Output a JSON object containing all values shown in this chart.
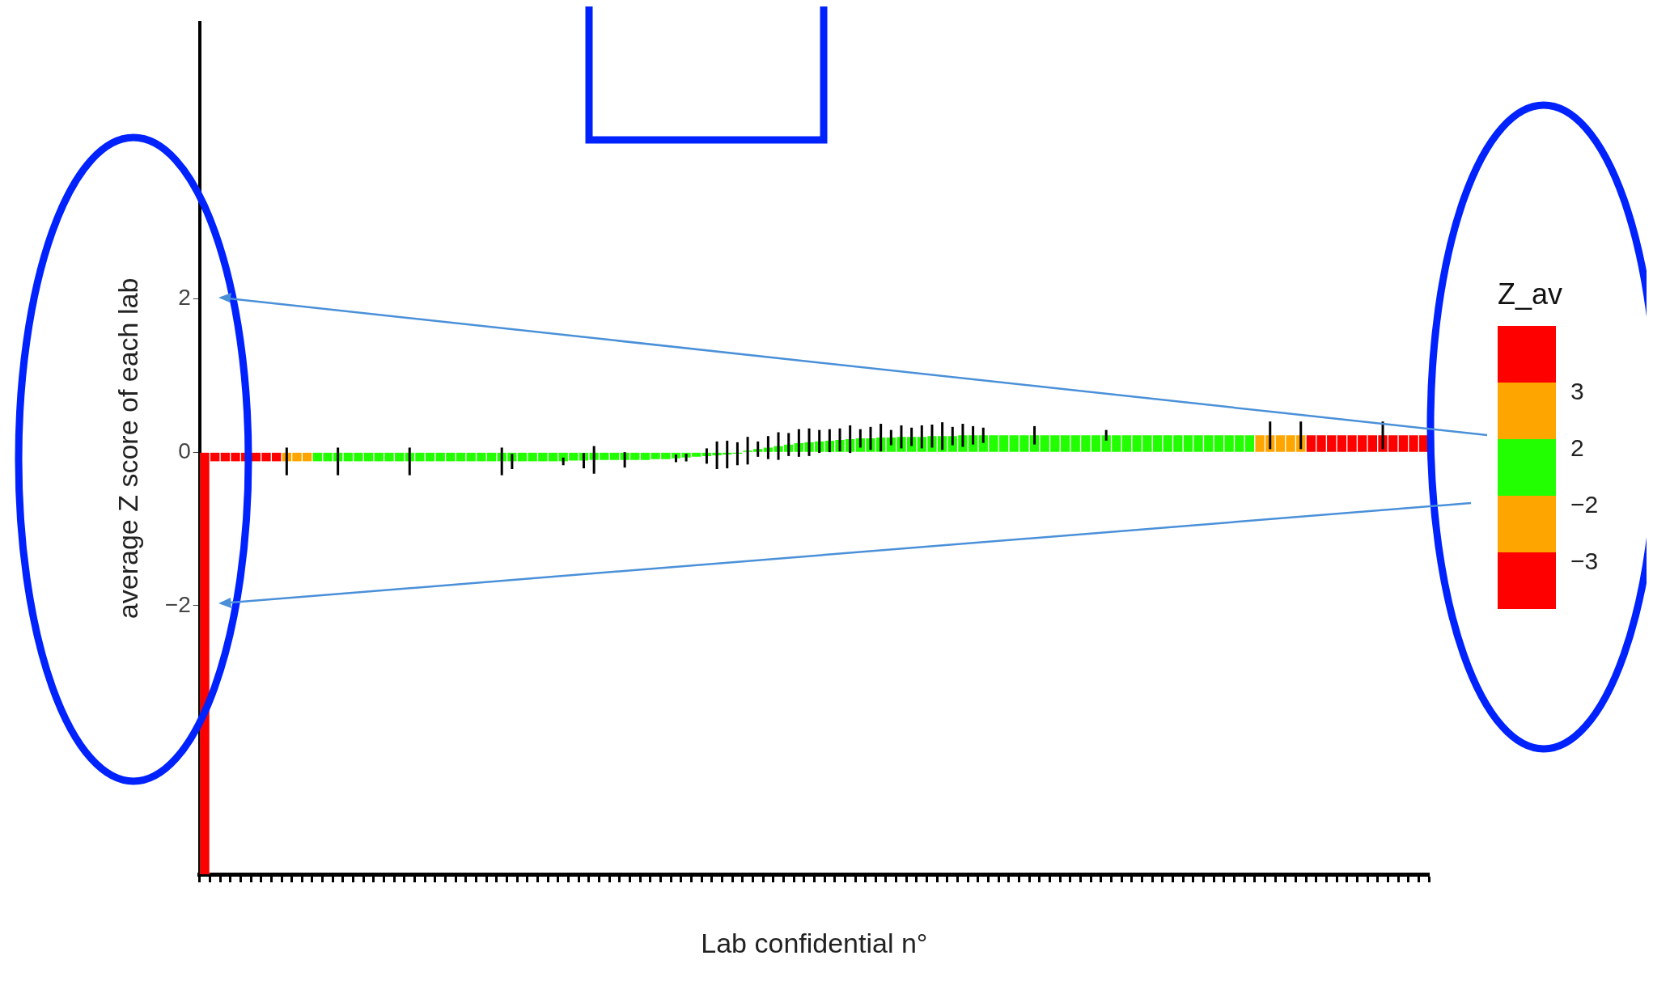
{
  "chart_data": {
    "type": "bar",
    "xlabel": "Lab confidential n°",
    "ylabel": "average Z score of each lab",
    "legend_title": "Z_av",
    "annotations": [
      "3",
      "2",
      "−2",
      "−3"
    ],
    "categories": [
      null,
      null,
      null,
      null,
      null,
      null,
      null,
      null,
      null,
      null,
      null,
      null,
      null,
      null,
      null,
      null,
      null,
      null,
      null,
      null,
      null,
      null,
      null,
      null,
      null,
      null,
      null,
      null,
      null,
      null,
      null,
      null,
      null,
      null,
      null,
      null,
      null,
      null,
      null,
      null,
      null,
      null,
      null,
      null,
      null,
      null,
      null,
      null,
      null,
      null,
      null,
      null,
      null,
      null,
      null,
      null,
      null,
      null,
      null,
      null,
      null,
      null,
      null,
      null,
      null,
      null,
      null,
      null,
      null,
      null,
      null,
      null,
      null,
      null,
      null,
      null,
      null,
      null,
      null,
      null,
      null,
      null,
      null,
      null,
      null,
      null,
      null,
      null,
      null,
      null,
      null,
      null,
      null,
      null,
      null,
      null,
      null,
      null,
      null,
      null,
      null,
      null,
      null,
      null,
      null,
      null,
      null,
      null,
      null,
      null,
      null,
      null,
      null,
      null,
      null,
      null,
      null,
      null,
      null,
      null
    ],
    "values": [
      -5.5,
      -0.12,
      -0.12,
      -0.12,
      -0.12,
      -0.12,
      -0.12,
      -0.12,
      -0.12,
      -0.12,
      -0.12,
      -0.12,
      -0.12,
      -0.12,
      -0.12,
      -0.12,
      -0.12,
      -0.12,
      -0.12,
      -0.12,
      -0.12,
      -0.12,
      -0.12,
      -0.12,
      -0.12,
      -0.12,
      -0.12,
      -0.12,
      -0.12,
      -0.12,
      -0.12,
      -0.12,
      -0.12,
      -0.12,
      -0.12,
      -0.12,
      -0.11,
      -0.11,
      -0.1,
      -0.1,
      -0.1,
      -0.1,
      -0.1,
      -0.1,
      -0.09,
      -0.09,
      -0.08,
      -0.07,
      -0.06,
      -0.05,
      -0.04,
      -0.03,
      -0.02,
      0.02,
      0.04,
      0.06,
      0.08,
      0.1,
      0.12,
      0.13,
      0.14,
      0.15,
      0.16,
      0.17,
      0.18,
      0.18,
      0.19,
      0.19,
      0.2,
      0.2,
      0.2,
      0.21,
      0.21,
      0.21,
      0.22,
      0.22,
      0.22,
      0.22,
      0.22,
      0.22,
      0.22,
      0.22,
      0.22,
      0.22,
      0.22,
      0.22,
      0.22,
      0.22,
      0.22,
      0.22,
      0.22,
      0.22,
      0.22,
      0.22,
      0.22,
      0.22,
      0.22,
      0.22,
      0.22,
      0.22,
      0.22,
      0.22,
      0.22,
      0.22,
      0.22,
      0.22,
      0.22,
      0.22,
      0.22,
      0.22,
      0.22,
      0.22,
      0.22,
      0.22,
      0.22,
      0.22,
      0.22,
      0.22,
      0.22,
      0.22
    ],
    "colors": [
      "#ff0000",
      "#ff0000",
      "#ff0000",
      "#ff0000",
      "#ff0000",
      "#ff0000",
      "#ff0000",
      "#ff0000",
      "#ffa500",
      "#ffa500",
      "#ffa500",
      "#22ff00",
      "#22ff00",
      "#22ff00",
      "#22ff00",
      "#22ff00",
      "#22ff00",
      "#22ff00",
      "#22ff00",
      "#22ff00",
      "#22ff00",
      "#22ff00",
      "#22ff00",
      "#22ff00",
      "#22ff00",
      "#22ff00",
      "#22ff00",
      "#22ff00",
      "#22ff00",
      "#22ff00",
      "#22ff00",
      "#22ff00",
      "#22ff00",
      "#22ff00",
      "#22ff00",
      "#22ff00",
      "#22ff00",
      "#22ff00",
      "#22ff00",
      "#22ff00",
      "#22ff00",
      "#22ff00",
      "#22ff00",
      "#22ff00",
      "#22ff00",
      "#22ff00",
      "#22ff00",
      "#22ff00",
      "#22ff00",
      "#22ff00",
      "#22ff00",
      "#22ff00",
      "#22ff00",
      "#22ff00",
      "#22ff00",
      "#22ff00",
      "#22ff00",
      "#22ff00",
      "#22ff00",
      "#22ff00",
      "#22ff00",
      "#22ff00",
      "#22ff00",
      "#22ff00",
      "#22ff00",
      "#22ff00",
      "#22ff00",
      "#22ff00",
      "#22ff00",
      "#22ff00",
      "#22ff00",
      "#22ff00",
      "#22ff00",
      "#22ff00",
      "#22ff00",
      "#22ff00",
      "#22ff00",
      "#22ff00",
      "#22ff00",
      "#22ff00",
      "#22ff00",
      "#22ff00",
      "#22ff00",
      "#22ff00",
      "#22ff00",
      "#22ff00",
      "#22ff00",
      "#22ff00",
      "#22ff00",
      "#22ff00",
      "#22ff00",
      "#22ff00",
      "#22ff00",
      "#22ff00",
      "#22ff00",
      "#22ff00",
      "#22ff00",
      "#22ff00",
      "#22ff00",
      "#22ff00",
      "#22ff00",
      "#22ff00",
      "#22ff00",
      "#ffa500",
      "#ffa500",
      "#ffa500",
      "#ffa500",
      "#ffa500",
      "#ff0000",
      "#ff0000",
      "#ff0000",
      "#ff0000",
      "#ff0000",
      "#ff0000",
      "#ff0000",
      "#ff0000",
      "#ff0000",
      "#ff0000",
      "#ff0000",
      "#ff0000"
    ],
    "errors": [
      null,
      null,
      null,
      null,
      null,
      null,
      null,
      null,
      0.18,
      null,
      null,
      null,
      null,
      0.18,
      null,
      null,
      null,
      null,
      null,
      null,
      0.18,
      null,
      null,
      null,
      null,
      null,
      null,
      null,
      null,
      0.18,
      0.1,
      null,
      null,
      null,
      null,
      0.05,
      null,
      0.1,
      0.18,
      null,
      null,
      0.1,
      null,
      null,
      null,
      null,
      0.05,
      0.05,
      null,
      0.1,
      0.18,
      0.18,
      0.15,
      0.18,
      0.1,
      0.15,
      0.18,
      0.15,
      0.18,
      0.18,
      0.15,
      0.15,
      0.15,
      0.18,
      0.12,
      0.15,
      0.18,
      0.1,
      0.15,
      0.12,
      0.15,
      0.15,
      0.18,
      0.12,
      0.15,
      0.12,
      0.1,
      null,
      null,
      null,
      null,
      0.12,
      null,
      null,
      null,
      null,
      null,
      null,
      0.07,
      null,
      null,
      null,
      null,
      null,
      null,
      null,
      null,
      null,
      null,
      null,
      null,
      null,
      null,
      null,
      0.18,
      null,
      null,
      0.18,
      null,
      null,
      null,
      null,
      null,
      null,
      null,
      0.18,
      null,
      null,
      null,
      null
    ],
    "ylim": [
      -5.5,
      5.6
    ],
    "yticks": [
      -2,
      0,
      2
    ],
    "grid": false
  }
}
